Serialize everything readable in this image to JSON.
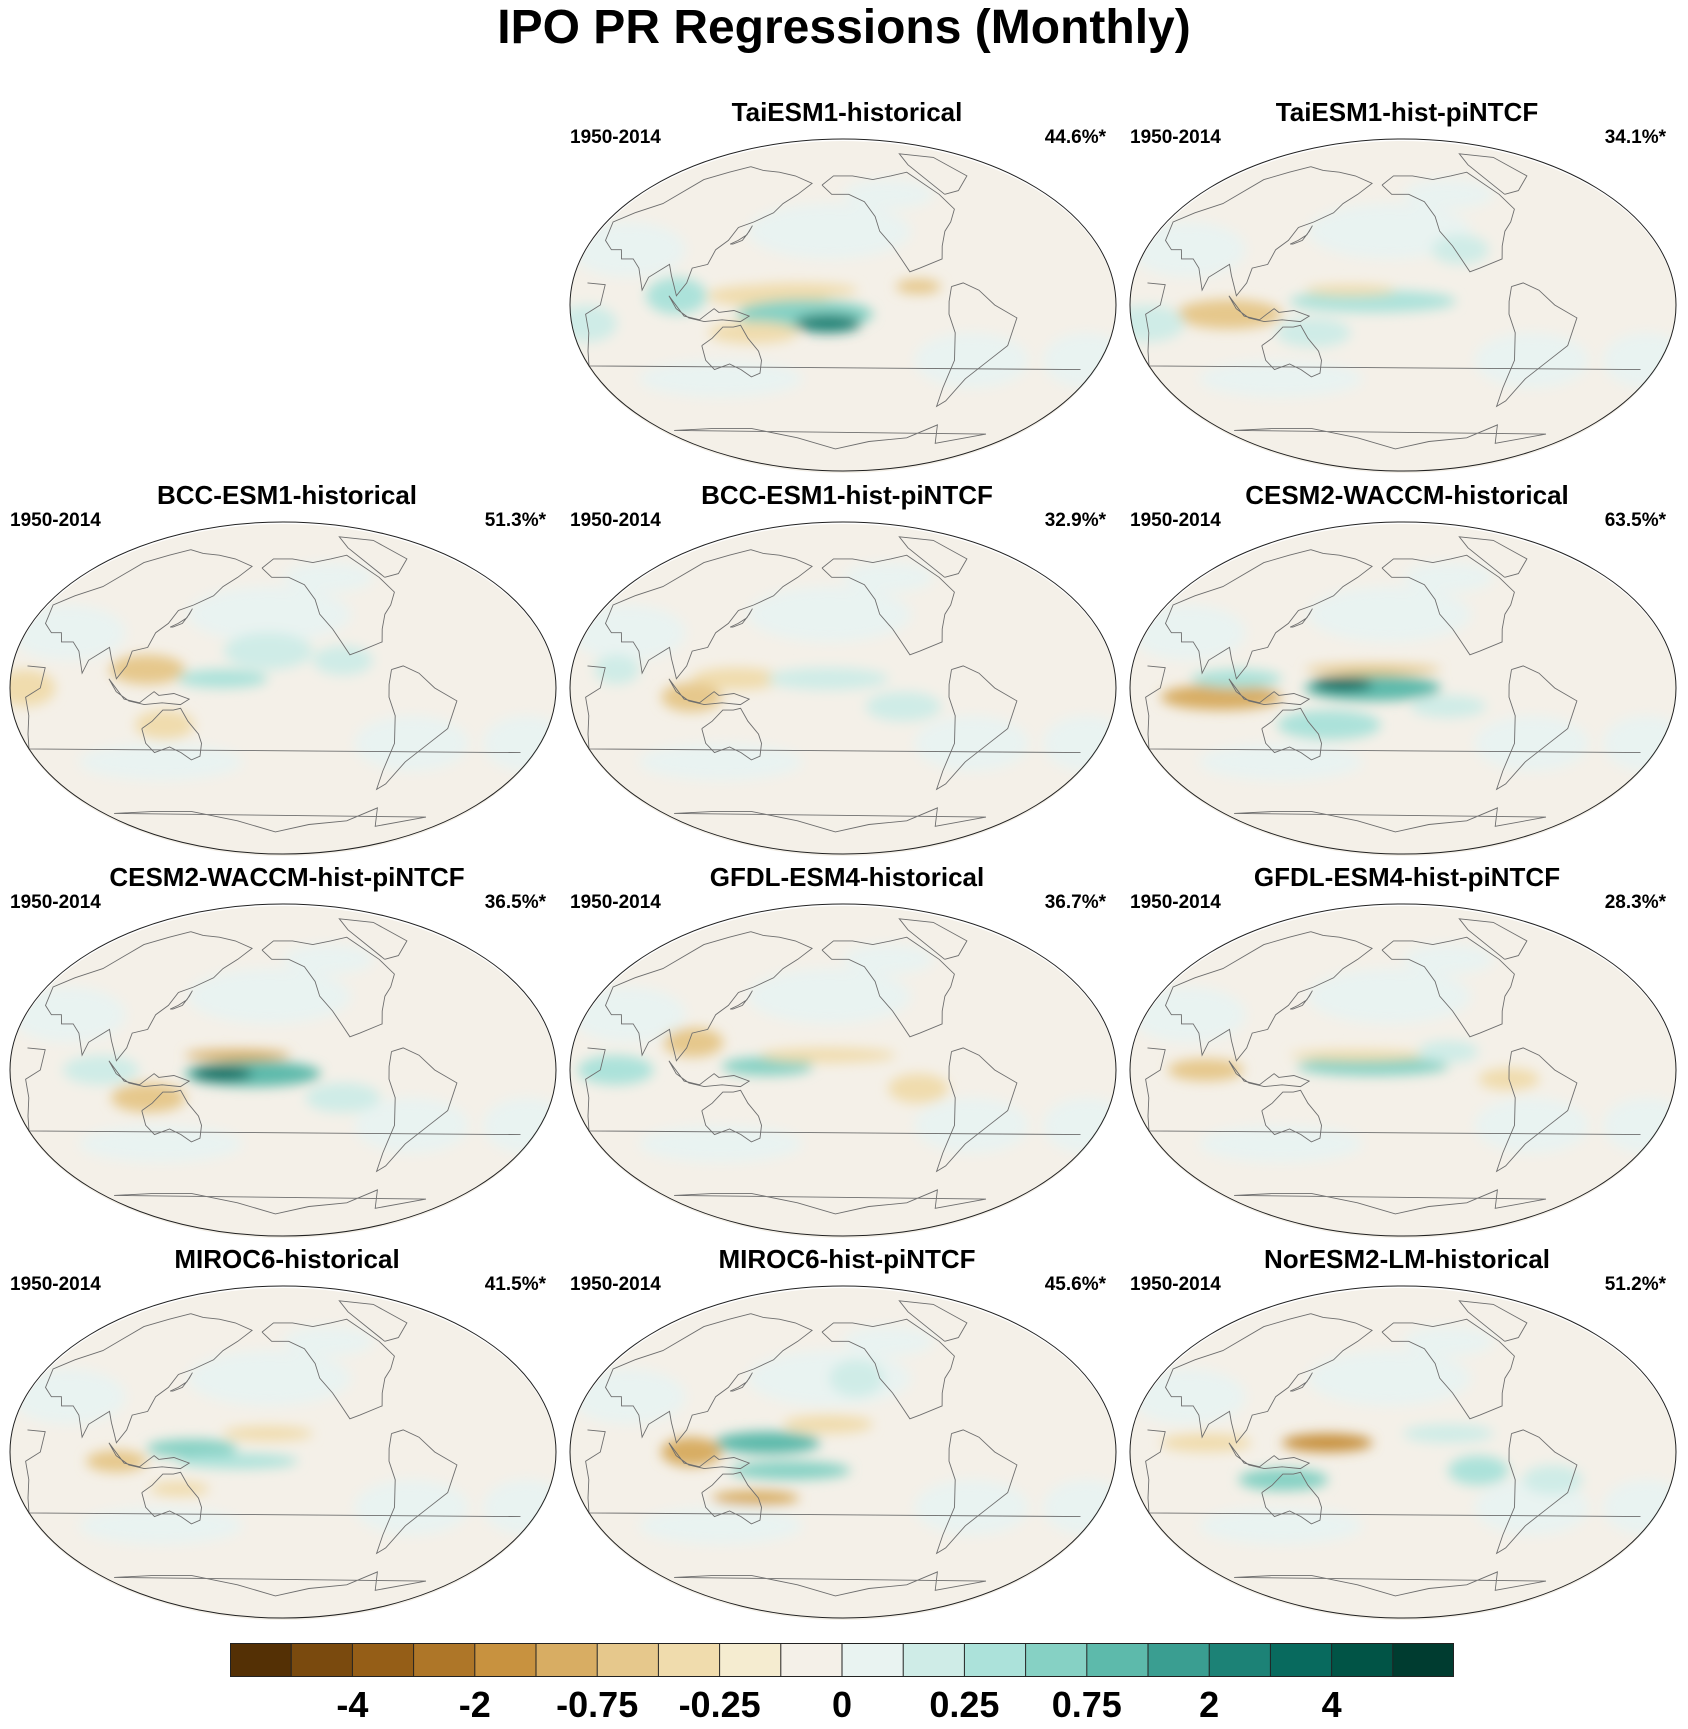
{
  "title": "IPO PR Regressions (Monthly)",
  "panels": [
    {
      "title": "TaiESM1-historical",
      "period": "1950-2014",
      "percent": "44.6%*"
    },
    {
      "title": "TaiESM1-hist-piNTCF",
      "period": "1950-2014",
      "percent": "34.1%*"
    },
    {
      "title": "BCC-ESM1-historical",
      "period": "1950-2014",
      "percent": "51.3%*"
    },
    {
      "title": "BCC-ESM1-hist-piNTCF",
      "period": "1950-2014",
      "percent": "32.9%*"
    },
    {
      "title": "CESM2-WACCM-historical",
      "period": "1950-2014",
      "percent": "63.5%*"
    },
    {
      "title": "CESM2-WACCM-hist-piNTCF",
      "period": "1950-2014",
      "percent": "36.5%*"
    },
    {
      "title": "GFDL-ESM4-historical",
      "period": "1950-2014",
      "percent": "36.7%*"
    },
    {
      "title": "GFDL-ESM4-hist-piNTCF",
      "period": "1950-2014",
      "percent": "28.3%*"
    },
    {
      "title": "MIROC6-historical",
      "period": "1950-2014",
      "percent": "41.5%*"
    },
    {
      "title": "MIROC6-hist-piNTCF",
      "period": "1950-2014",
      "percent": "45.6%*"
    },
    {
      "title": "NorESM2-LM-historical",
      "period": "1950-2014",
      "percent": "51.2%*"
    }
  ],
  "colorbar": {
    "labels": [
      "-4",
      "-2",
      "-0.75",
      "-0.25",
      "0",
      "0.25",
      "0.75",
      "2",
      "4"
    ],
    "colors": [
      "#543005",
      "#7a4a0e",
      "#955e17",
      "#ae7628",
      "#c8923f",
      "#d8ad63",
      "#e6c88c",
      "#f0dcad",
      "#f5ecd0",
      "#f4f0e8",
      "#e9f3f1",
      "#cfece7",
      "#ace2da",
      "#86d1c4",
      "#5dbaab",
      "#3a9e91",
      "#1c8276",
      "#086a5e",
      "#015446",
      "#003c30"
    ]
  }
}
